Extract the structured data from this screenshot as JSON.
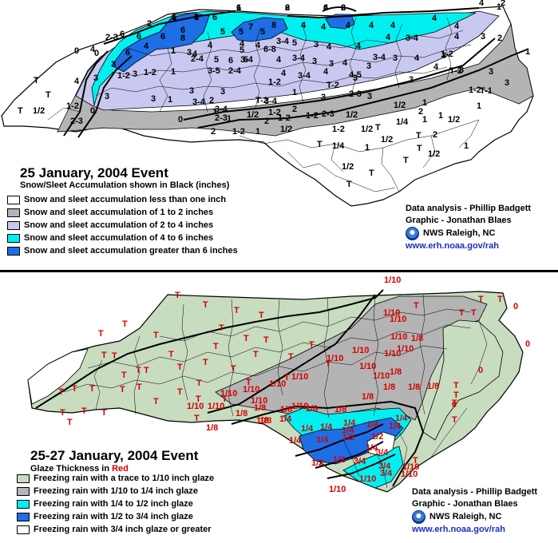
{
  "colors": {
    "snow_lt1": "#ffffff",
    "snow_1_2": "#b4b4b4",
    "snow_2_4": "#c8c8f0",
    "snow_4_6": "#00f0f0",
    "snow_gt6": "#1e6ee6",
    "ice_trace": "#c8dcc0",
    "ice_tenth": "#b4b4b4",
    "ice_quarter": "#00f0f0",
    "ice_half": "#1e6ee6",
    "ice_threequarter": "#ffffff",
    "label_red": "#d40000",
    "url_blue": "#1a2fbf"
  },
  "top_map": {
    "title": "25 January, 2004 Event",
    "subtitle": "Snow/Sleet Accumulation shown in Black (inches)",
    "legend": [
      {
        "label": "Snow and sleet accumulation less than one inch",
        "color": "#ffffff"
      },
      {
        "label": "Snow and sleet accumulation of 1 to 2 inches",
        "color": "#b4b4b4"
      },
      {
        "label": "Snow and sleet accumulation of 2 to 4 inches",
        "color": "#c8c8f0"
      },
      {
        "label": "Snow and sleet accumulation of 4 to 6 inches",
        "color": "#00f0f0"
      },
      {
        "label": "Snow and sleet accumulation greater than 6 inches",
        "color": "#1e6ee6"
      }
    ],
    "credits": {
      "analysis": "Data analysis - Phillip Badgett",
      "graphic": "Graphic - Jonathan Blaes",
      "office": "NWS Raleigh, NC",
      "url": "www.erh.noaa.gov/rah"
    },
    "labels": [
      "6",
      "6",
      "6",
      "6",
      "6",
      "6",
      "6",
      "5",
      "5",
      "5",
      "5",
      "6",
      "6",
      "6",
      "8",
      "6",
      "7",
      "8",
      "4",
      "4",
      "4",
      "4",
      "4",
      "4",
      "3-4",
      "4",
      "4",
      "4",
      "4",
      "2",
      "2-3",
      "2",
      "4",
      "6",
      "1",
      "3",
      "5",
      "6",
      "5",
      "4",
      "4",
      "4",
      "4",
      "4",
      "6-8",
      "3-4",
      "5",
      "4",
      "3-4",
      "3",
      "4",
      "4",
      "3",
      "3",
      "4",
      "3-4",
      "3",
      "4",
      "4",
      "3",
      "3",
      "3",
      "3",
      "1-2",
      "1-2",
      "1",
      "2-4",
      "3-5",
      "2-4",
      "3-4",
      "4",
      "3-4",
      "4",
      "4-5",
      "3",
      "3",
      "3",
      "4",
      "3",
      "3",
      "1-2",
      "1",
      "T-2",
      "2-3",
      "3",
      "3",
      "3",
      "3",
      "3",
      "1",
      "3-4",
      "3-4",
      "3-4",
      "1-2",
      "2",
      "3",
      "2-3",
      "3",
      "1-2",
      "T-1",
      "T-2",
      "1-2",
      "2",
      "3",
      "2-3",
      "1-2",
      "2-3",
      "1",
      "1/2",
      "T-2",
      "1-2",
      "2",
      "1-2",
      "1",
      "1/2",
      "1/2",
      "1-2",
      "1-2",
      "1",
      "1",
      "1",
      "1/2",
      "1/2",
      "1",
      "1/4",
      "1/2",
      "1/4",
      "1/2",
      "T",
      "T",
      "1",
      "T",
      "T",
      "1/2",
      "T",
      "T",
      "T",
      "1/2",
      "T",
      "T",
      "1/2",
      "T",
      "0",
      "0",
      "0",
      "0",
      "1",
      "2",
      "2",
      "2",
      "1",
      "2",
      "1",
      "1",
      "1",
      "2",
      "4",
      "2",
      "1",
      "1"
    ]
  },
  "bottom_map": {
    "title": "25-27 January, 2004 Event",
    "subtitle_prefix": "Glaze Thickness in ",
    "subtitle_red": "Red",
    "legend": [
      {
        "label": "Freezing rain with a trace to 1/10 inch glaze",
        "color": "#c8dcc0"
      },
      {
        "label": "Freezing rain with 1/10 to 1/4 inch glaze",
        "color": "#b4b4b4"
      },
      {
        "label": "Freezing rain with 1/4 to 1/2 inch glaze",
        "color": "#00f0f0"
      },
      {
        "label": "Freezing rain with 1/2 to 3/4 inch glaze",
        "color": "#1e6ee6"
      },
      {
        "label": "Freezing rain with 3/4 inch glaze or greater",
        "color": "#ffffff"
      }
    ],
    "credits": {
      "analysis": "Data analysis - Phillip Badgett",
      "graphic": "Graphic - Jonathan Blaes",
      "office": "NWS Raleigh, NC",
      "url": "www.erh.noaa.gov/rah"
    },
    "labels": [
      "T",
      "T",
      "T",
      "T",
      "T",
      "T",
      "T",
      "T",
      "T",
      "T",
      "T",
      "T",
      "T",
      "T",
      "T",
      "T",
      "T",
      "T",
      "T",
      "T",
      "T",
      "T",
      "T",
      "T",
      "T",
      "T",
      "T",
      "T",
      "T",
      "T",
      "T",
      "T",
      "T",
      "T",
      "T",
      "T",
      "T",
      "T",
      "T",
      "T",
      "T",
      "T",
      "T",
      "T",
      "1/10",
      "1/10",
      "1/10",
      "1/10",
      "1/10",
      "1/10",
      "1/10",
      "1/10",
      "1/10",
      "1/10",
      "1/10",
      "1/10",
      "1/10",
      "1/10",
      "1/10",
      "1/10",
      "1/10",
      "1/10",
      "1/8",
      "1/8",
      "1/8",
      "1/8",
      "1/8",
      "1/8",
      "1/8",
      "1/8",
      "1/8",
      "1/8",
      "1/8",
      "1/8",
      "1/8",
      "1/8",
      "1/4",
      "1/4",
      "1/4",
      "1/4",
      "1/4",
      "1/4",
      "1/4",
      "1/4",
      "1/4",
      "1/4",
      "1/4",
      "1/2",
      "1/2",
      "1/2",
      "1/2",
      "3/4",
      "3/4",
      "3/4",
      "3/4",
      "1/10",
      "1/10",
      "1/10",
      "1/10",
      "T",
      "T",
      "T",
      "T",
      "T",
      "T",
      "T",
      "0",
      "0",
      "0",
      "0"
    ]
  }
}
